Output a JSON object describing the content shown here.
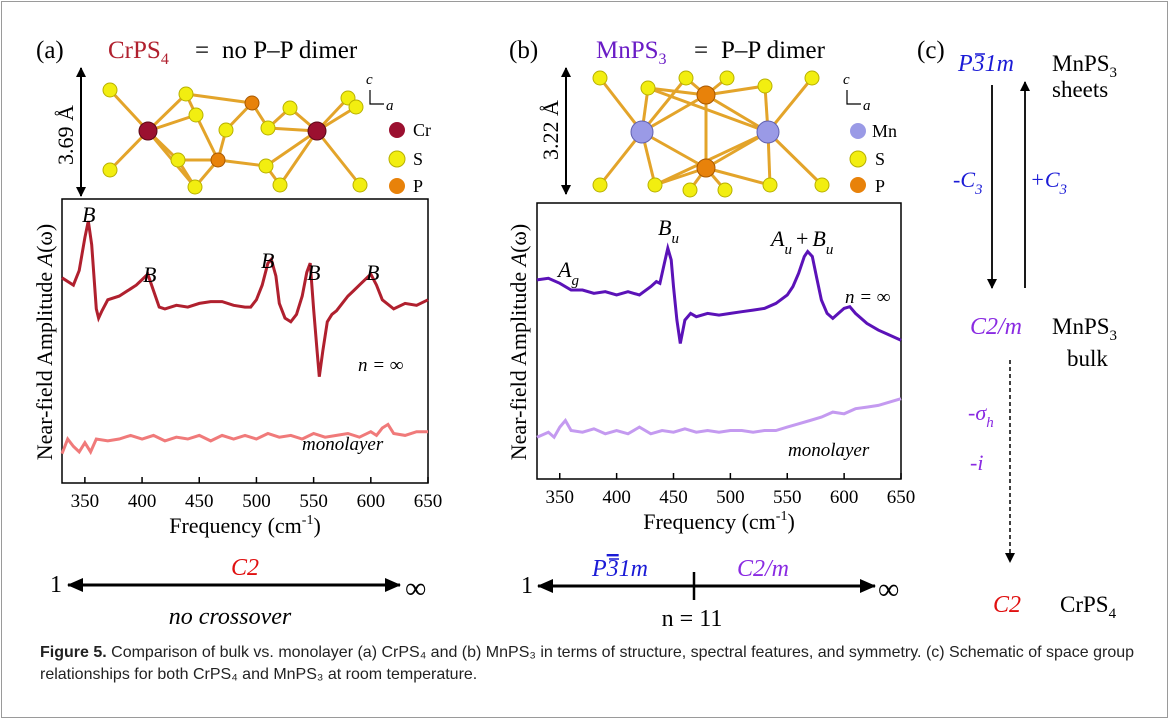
{
  "panel_a": {
    "label": "(a)",
    "compound": "CrPS",
    "compound_sub": "4",
    "equals": "=",
    "dimer_text": "no P–P dimer",
    "thickness": "3.69 Å",
    "axis_c": "c",
    "axis_a": "a",
    "legend": [
      {
        "label": "Cr",
        "color": "#9b1030"
      },
      {
        "label": "S",
        "color": "#f2ee10"
      },
      {
        "label": "P",
        "color": "#e8820a"
      }
    ],
    "peak_labels": [
      "B",
      "B",
      "B",
      "B",
      "B"
    ],
    "n_label": "n = ∞",
    "mono_label": "monolayer",
    "scale_left": "1",
    "scale_right": "∞",
    "scale_group": "C2",
    "scale_note": "no crossover"
  },
  "panel_b": {
    "label": "(b)",
    "compound": "MnPS",
    "compound_sub": "3",
    "equals": "=",
    "dimer_text": "P–P dimer",
    "thickness": "3.22 Å",
    "axis_c": "c",
    "axis_a": "a",
    "legend": [
      {
        "label": "Mn",
        "color": "#9a9ae6"
      },
      {
        "label": "S",
        "color": "#f2ee10"
      },
      {
        "label": "P",
        "color": "#e8820a"
      }
    ],
    "peak_ag": "A",
    "peak_ag_sub": "g",
    "peak_bu": "B",
    "peak_bu_sub": "u",
    "peak_aubu_a": "A",
    "peak_aubu_a_sub": "u",
    "peak_aubu_plus": "+",
    "peak_aubu_b": "B",
    "peak_aubu_b_sub": "u",
    "n_label": "n = ∞",
    "mono_label": "monolayer",
    "scale_left": "1",
    "scale_right": "∞",
    "scale_group_left_main": "P",
    "scale_group_left_bar": "3",
    "scale_group_left_rest": "1m",
    "scale_group_right": "C2/m",
    "scale_mid": "n = 11"
  },
  "panel_c": {
    "label": "(c)",
    "top_group_main": "P",
    "top_group_bar": "3",
    "top_group_rest": "1m",
    "top_name": "MnPS",
    "top_name_sub": "3",
    "top_desc": "sheets",
    "minus_c3": "-C",
    "minus_c3_sub": "3",
    "plus_c3": "+C",
    "plus_c3_sub": "3",
    "mid_group": "C2/m",
    "mid_name": "MnPS",
    "mid_name_sub": "3",
    "mid_desc": "bulk",
    "sigma": "-σ",
    "sigma_sub": "h",
    "inversion": "-i",
    "bottom_group": "C2",
    "bottom_name": "CrPS",
    "bottom_name_sub": "4"
  },
  "caption": {
    "bold": "Figure 5.",
    "text": " Comparison of bulk vs. monolayer (a) CrPS₄ and (b) MnPS₃ in terms of structure, spectral features, and symmetry. (c) Schematic of space group relationships for both CrPS₄ and MnPS₃ at room temperature."
  },
  "colors": {
    "cr_bulk": "#b0202e",
    "cr_mono": "#f07a7a",
    "mn_bulk": "#5b12b8",
    "mn_bulk_alt": "#6a1cc6",
    "mn_mono": "#c49af0",
    "red_text": "#e01010",
    "blue_text": "#1b1bd6",
    "purple_text": "#8a2be2",
    "bond": "#e3a42a"
  },
  "chart_data": [
    {
      "type": "line",
      "panel": "a",
      "ylabel": "Near-field Amplitude A(ω)",
      "xlabel": "Frequency (cm-1)",
      "xlim": [
        330,
        650
      ],
      "xticks": [
        350,
        400,
        450,
        500,
        550,
        600,
        650
      ],
      "series": [
        {
          "name": "n = ∞",
          "x": [
            330,
            340,
            345,
            350,
            353,
            356,
            360,
            362,
            365,
            370,
            380,
            390,
            395,
            400,
            405,
            410,
            415,
            420,
            430,
            440,
            450,
            460,
            470,
            480,
            490,
            495,
            500,
            505,
            510,
            513,
            517,
            520,
            525,
            530,
            535,
            540,
            544,
            547,
            550,
            553,
            555,
            558,
            562,
            566,
            570,
            575,
            580,
            585,
            590,
            595,
            600,
            605,
            610,
            620,
            630,
            640,
            650
          ],
          "y": [
            0.62,
            0.58,
            0.66,
            0.84,
            0.93,
            0.8,
            0.45,
            0.4,
            0.44,
            0.5,
            0.52,
            0.56,
            0.58,
            0.61,
            0.64,
            0.55,
            0.46,
            0.45,
            0.47,
            0.46,
            0.48,
            0.49,
            0.49,
            0.47,
            0.46,
            0.46,
            0.5,
            0.58,
            0.7,
            0.72,
            0.63,
            0.48,
            0.4,
            0.38,
            0.42,
            0.52,
            0.65,
            0.7,
            0.45,
            0.22,
            0.08,
            0.22,
            0.38,
            0.42,
            0.44,
            0.48,
            0.52,
            0.55,
            0.58,
            0.61,
            0.64,
            0.58,
            0.5,
            0.45,
            0.48,
            0.47,
            0.5
          ]
        },
        {
          "name": "monolayer",
          "x": [
            330,
            335,
            340,
            345,
            350,
            355,
            360,
            370,
            380,
            390,
            400,
            410,
            420,
            430,
            440,
            450,
            460,
            470,
            480,
            490,
            500,
            510,
            520,
            530,
            540,
            550,
            560,
            570,
            580,
            590,
            600,
            605,
            610,
            615,
            620,
            630,
            640,
            650
          ],
          "y": [
            -0.34,
            -0.26,
            -0.3,
            -0.33,
            -0.28,
            -0.33,
            -0.26,
            -0.27,
            -0.26,
            -0.24,
            -0.26,
            -0.24,
            -0.27,
            -0.25,
            -0.26,
            -0.24,
            -0.27,
            -0.24,
            -0.26,
            -0.24,
            -0.26,
            -0.23,
            -0.25,
            -0.24,
            -0.26,
            -0.23,
            -0.25,
            -0.24,
            -0.23,
            -0.25,
            -0.22,
            -0.24,
            -0.2,
            -0.18,
            -0.23,
            -0.24,
            -0.22,
            -0.22
          ]
        }
      ]
    },
    {
      "type": "line",
      "panel": "b",
      "ylabel": "Near-field Amplitude A(ω)",
      "xlabel": "Frequency (cm-1)",
      "xlim": [
        330,
        650
      ],
      "xticks": [
        350,
        400,
        450,
        500,
        550,
        600,
        650
      ],
      "series": [
        {
          "name": "n = ∞",
          "x": [
            330,
            340,
            350,
            360,
            370,
            380,
            390,
            400,
            410,
            420,
            430,
            435,
            438,
            442,
            445,
            448,
            450,
            453,
            456,
            460,
            465,
            470,
            480,
            490,
            500,
            510,
            520,
            530,
            540,
            550,
            555,
            560,
            565,
            568,
            572,
            576,
            580,
            585,
            590,
            595,
            600,
            605,
            610,
            620,
            630,
            640,
            650
          ],
          "y": [
            0.64,
            0.65,
            0.62,
            0.58,
            0.58,
            0.56,
            0.57,
            0.55,
            0.57,
            0.55,
            0.6,
            0.63,
            0.62,
            0.74,
            0.83,
            0.76,
            0.6,
            0.4,
            0.26,
            0.4,
            0.44,
            0.42,
            0.44,
            0.43,
            0.44,
            0.45,
            0.46,
            0.47,
            0.5,
            0.55,
            0.6,
            0.68,
            0.78,
            0.81,
            0.78,
            0.65,
            0.52,
            0.44,
            0.41,
            0.44,
            0.47,
            0.48,
            0.44,
            0.38,
            0.34,
            0.31,
            0.28
          ]
        },
        {
          "name": "monolayer",
          "x": [
            330,
            340,
            345,
            350,
            355,
            360,
            370,
            380,
            390,
            400,
            410,
            420,
            430,
            440,
            450,
            460,
            470,
            480,
            490,
            500,
            510,
            520,
            530,
            540,
            550,
            560,
            570,
            580,
            590,
            600,
            610,
            620,
            630,
            640,
            650
          ],
          "y": [
            -0.3,
            -0.27,
            -0.3,
            -0.24,
            -0.2,
            -0.26,
            -0.27,
            -0.25,
            -0.28,
            -0.26,
            -0.28,
            -0.24,
            -0.28,
            -0.26,
            -0.27,
            -0.25,
            -0.27,
            -0.26,
            -0.27,
            -0.26,
            -0.26,
            -0.27,
            -0.26,
            -0.26,
            -0.24,
            -0.22,
            -0.2,
            -0.18,
            -0.15,
            -0.16,
            -0.13,
            -0.12,
            -0.11,
            -0.09,
            -0.07
          ]
        }
      ]
    }
  ]
}
